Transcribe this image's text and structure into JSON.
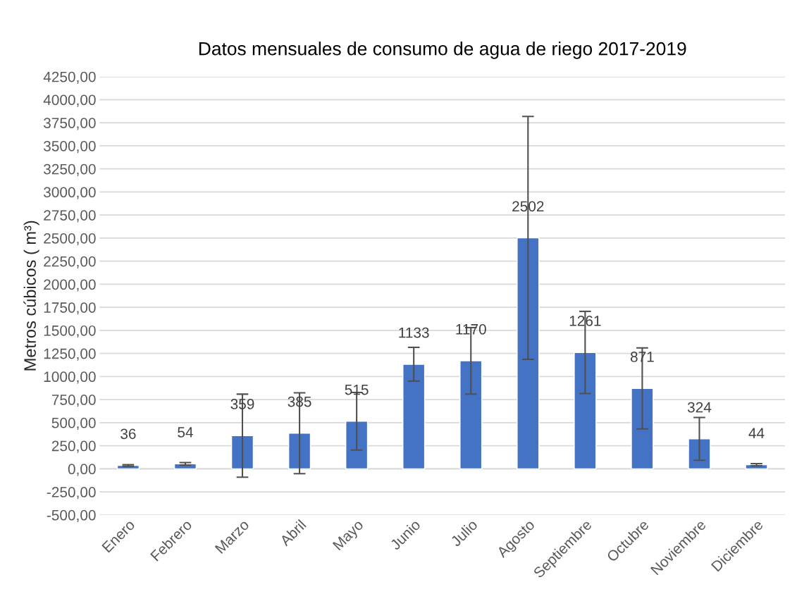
{
  "chart_data": {
    "type": "bar",
    "title": "Datos mensuales de consumo de agua de riego 2017-2019",
    "ylabel": "Metros cúbicos ( m³)",
    "categories": [
      "Enero",
      "Febrero",
      "Marzo",
      "Abril",
      "Mayo",
      "Junio",
      "Julio",
      "Agosto",
      "Septiembre",
      "Octubre",
      "Noviembre",
      "Diciembre"
    ],
    "values": [
      36,
      54,
      359,
      385,
      515,
      1133,
      1170,
      2502,
      1261,
      871,
      324,
      44
    ],
    "errors": [
      8,
      13,
      450,
      438,
      312,
      183,
      360,
      1316,
      445,
      439,
      232,
      12
    ],
    "color": "#4472c4",
    "data_labels": true,
    "grid": "y",
    "legend": false,
    "ylim": [
      -500,
      4250
    ],
    "yticks": [
      {
        "value": -500,
        "label": "-500,00"
      },
      {
        "value": -250,
        "label": "-250,00"
      },
      {
        "value": 0,
        "label": "0,00"
      },
      {
        "value": 250,
        "label": "250,00"
      },
      {
        "value": 500,
        "label": "500,00"
      },
      {
        "value": 750,
        "label": "750,00"
      },
      {
        "value": 1000,
        "label": "1000,00"
      },
      {
        "value": 1250,
        "label": "1250,00"
      },
      {
        "value": 1500,
        "label": "1500,00"
      },
      {
        "value": 1750,
        "label": "1750,00"
      },
      {
        "value": 2000,
        "label": "2000,00"
      },
      {
        "value": 2250,
        "label": "2250,00"
      },
      {
        "value": 2500,
        "label": "2500,00"
      },
      {
        "value": 2750,
        "label": "2750,00"
      },
      {
        "value": 3000,
        "label": "3000,00"
      },
      {
        "value": 3250,
        "label": "3250,00"
      },
      {
        "value": 3500,
        "label": "3500,00"
      },
      {
        "value": 3750,
        "label": "3750,00"
      },
      {
        "value": 4000,
        "label": "4000,00"
      },
      {
        "value": 4250,
        "label": "4250,00"
      }
    ]
  }
}
